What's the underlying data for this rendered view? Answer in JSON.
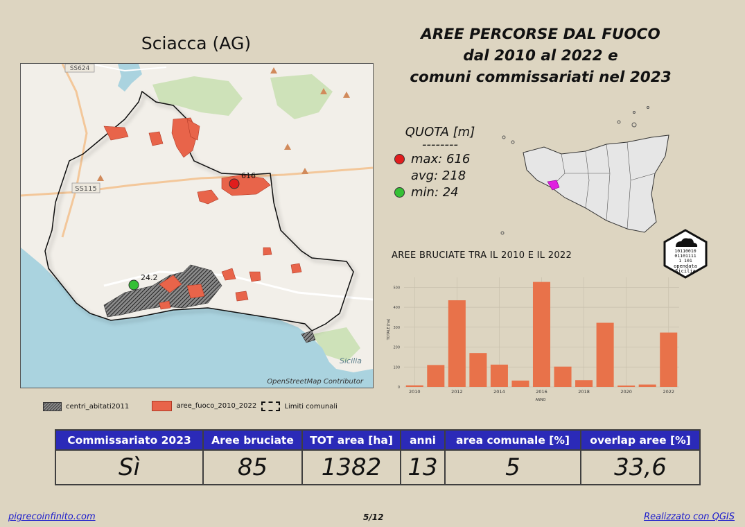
{
  "map": {
    "comune_title": "Sciacca (AG)",
    "road_labels": [
      "SS624",
      "SS115",
      "Sicilia"
    ],
    "max_point_label": "616",
    "min_point_label": "24.2",
    "credit": "OpenStreetMap Contributor",
    "colors": {
      "fire": "#e8644a",
      "boundary": "#111111",
      "sea": "#aad3df",
      "land": "#f2efe9",
      "max_dot": "#e11d1d",
      "min_dot": "#35c035"
    }
  },
  "title": {
    "line1": "AREE PERCORSE DAL FUOCO",
    "line2": "dal 2010 al 2022 e",
    "line3": "comuni commissariati nel 2023"
  },
  "legend": {
    "items": [
      {
        "label": "centri_abitati2011",
        "icon": "hatched-swatch"
      },
      {
        "label": "aree_fuoco_2010_2022",
        "icon": "orange-swatch"
      },
      {
        "label": "Limiti comunali",
        "icon": "dashed-box"
      }
    ]
  },
  "quota": {
    "header": "QUOTA [m]",
    "separator": "--------",
    "max": "max: 616",
    "avg": "avg: 218",
    "min": "min: 24"
  },
  "chart_data": {
    "type": "bar",
    "title": "AREE BRUCIATE TRA IL 2010 E IL 2022",
    "xlabel": "ANNO",
    "ylabel": "TOTALE [ha]",
    "categories": [
      2010,
      2011,
      2012,
      2013,
      2014,
      2015,
      2016,
      2017,
      2018,
      2019,
      2020,
      2021,
      2022
    ],
    "values": [
      8,
      110,
      435,
      170,
      112,
      32,
      527,
      102,
      34,
      322,
      7,
      12,
      273
    ],
    "x_ticks": [
      "2010",
      "2012",
      "2014",
      "2016",
      "2018",
      "2020",
      "2022"
    ],
    "y_ticks": [
      0,
      100,
      200,
      300,
      400,
      500
    ],
    "ylim": [
      0,
      550
    ],
    "bar_color": "#e8724a",
    "grid": true
  },
  "logo": {
    "text_line1": "opendata",
    "text_line2": "Sicilia",
    "bits": [
      "10110010",
      "01101111",
      "1  101",
      "  1"
    ]
  },
  "table": {
    "headers": [
      "Commissariato 2023",
      "Aree bruciate",
      "TOT area [ha]",
      "anni",
      "area comunale [%]",
      "overlap aree [%]"
    ],
    "values": [
      "Sì",
      "85",
      "1382",
      "13",
      "5",
      "33,6"
    ],
    "header_color": "#2b2ab8"
  },
  "footer": {
    "left": "pigrecoinfinito.com",
    "page": "5/12",
    "right": "Realizzato con QGIS"
  }
}
